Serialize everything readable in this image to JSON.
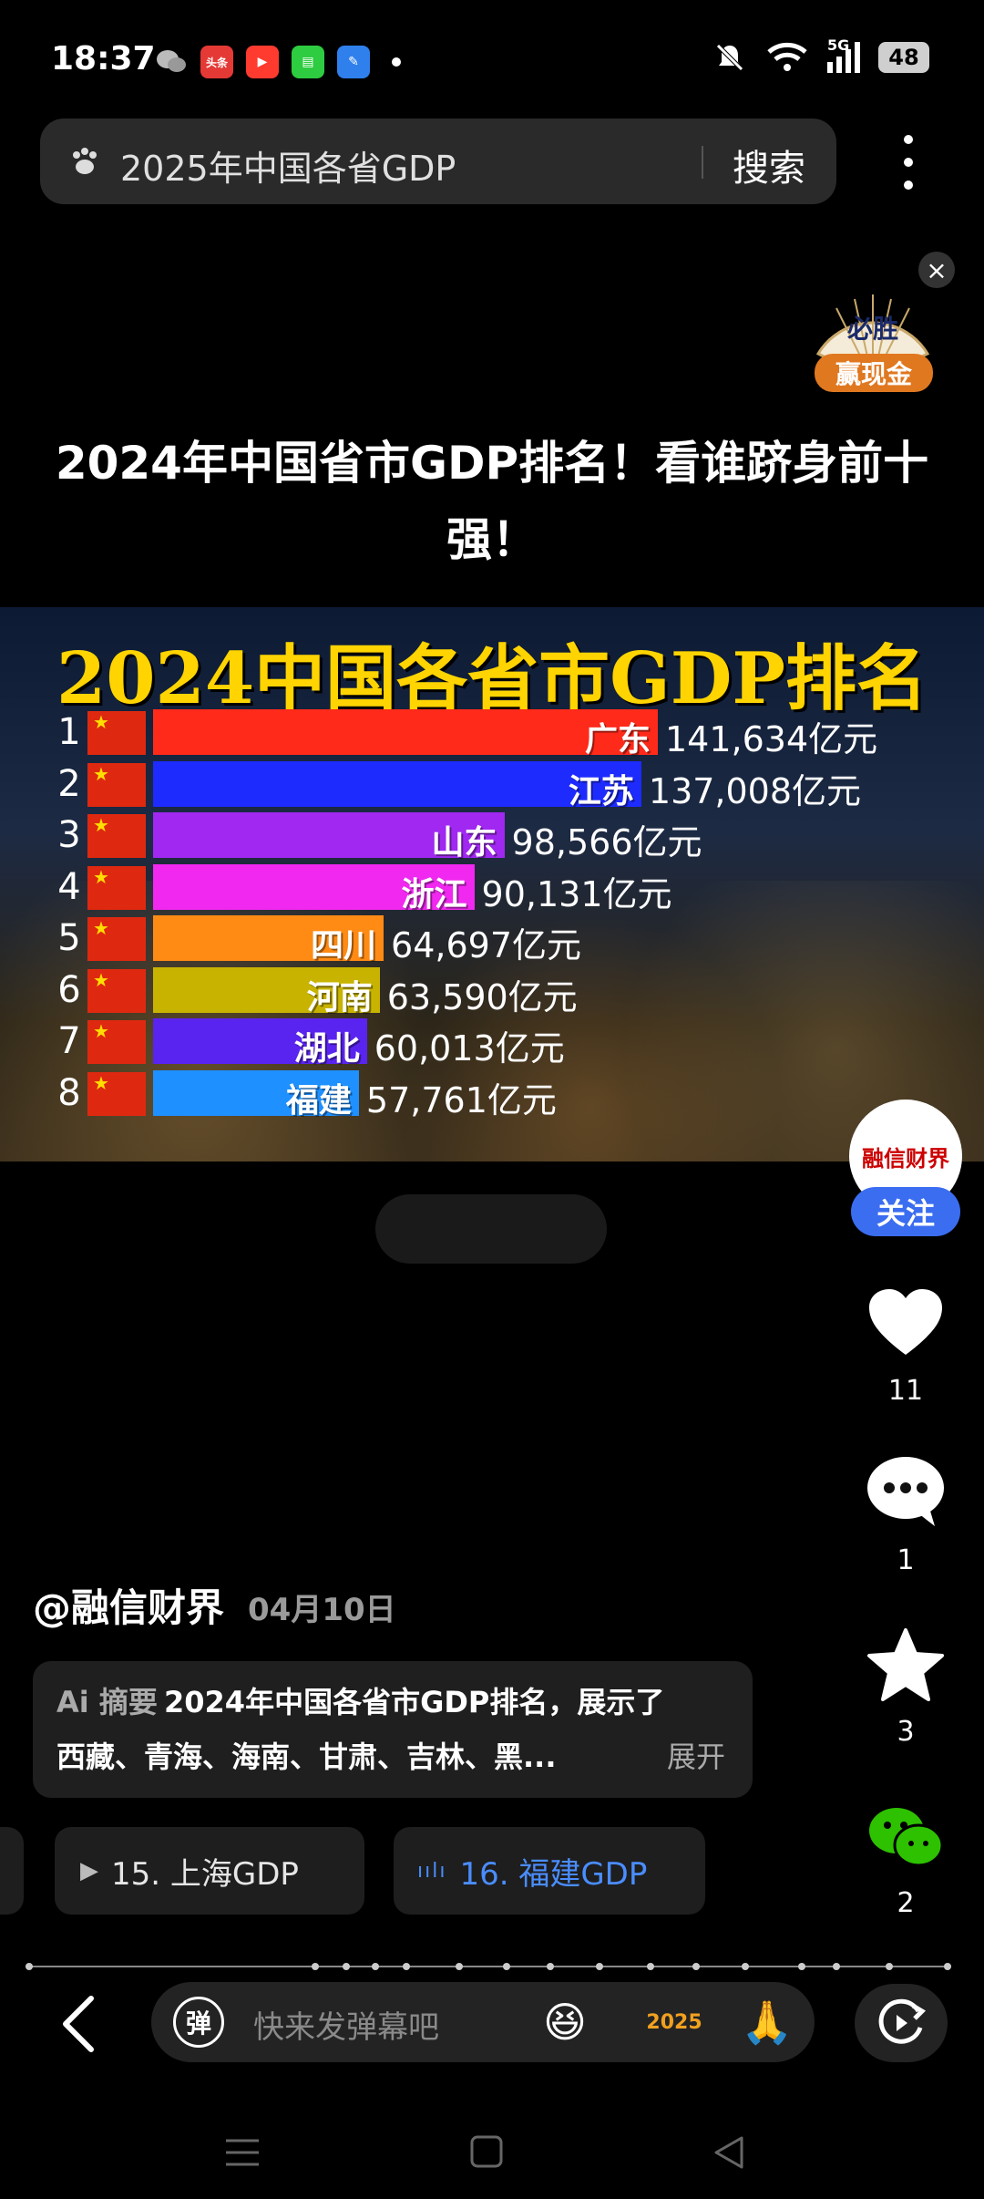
{
  "status_bar": {
    "time": "18:37",
    "battery": "48",
    "network": "5G",
    "apps": [
      {
        "name": "wechat-icon",
        "color": "#9ea3a8",
        "glyph": ""
      },
      {
        "name": "toutiao-icon",
        "color": "#e53935",
        "glyph": "头条"
      },
      {
        "name": "video-app-icon",
        "color": "#ff3b30",
        "glyph": "▶"
      },
      {
        "name": "messages-icon",
        "color": "#2ecc40",
        "glyph": "▤"
      },
      {
        "name": "feather-app-icon",
        "color": "#2f80ed",
        "glyph": "✎"
      }
    ]
  },
  "search": {
    "query": "2025年中国各省GDP",
    "button_label": "搜索"
  },
  "ad": {
    "fan_text": "必胜",
    "label": "赢现金",
    "close_symbol": "×"
  },
  "post": {
    "title": "2024年中国省市GDP排名！看谁跻身前十强！",
    "author": "@融信财界",
    "date": "04月10日",
    "summary_ai_label": "Ai 摘要",
    "summary_line1": "2024年中国各省市GDP排名，展示了",
    "summary_line2": "西藏、青海、海南、甘肃、吉林、黑...",
    "summary_expand": "展开"
  },
  "chart_data": {
    "type": "bar",
    "title": "2024中国各省市GDP排名",
    "unit": "亿元",
    "categories": [
      "广东",
      "江苏",
      "山东",
      "浙江",
      "四川",
      "河南",
      "湖北",
      "福建"
    ],
    "values": [
      141634,
      137008,
      98566,
      90131,
      64697,
      63590,
      60013,
      57761
    ],
    "value_labels": [
      "141,634亿元",
      "137,008亿元",
      "98,566亿元",
      "90,131亿元",
      "64,697亿元",
      "63,590亿元",
      "60,013亿元",
      "57,761亿元"
    ],
    "ranks": [
      "1",
      "2",
      "3",
      "4",
      "5",
      "6",
      "7",
      "8"
    ],
    "colors": [
      "#ff2a1a",
      "#1e2bff",
      "#a028f0",
      "#f028f0",
      "#ff8a14",
      "#c8b400",
      "#5a24f0",
      "#1e90ff"
    ]
  },
  "actions": {
    "avatar_text": "融信财界",
    "follow_label": "关注",
    "likes": "11",
    "comments": "1",
    "favorites": "3",
    "shares": "2"
  },
  "related": {
    "chip1": "15. 上海GDP",
    "chip2": "16. 福建GDP"
  },
  "input_bar": {
    "danmaku_icon_text": "弹",
    "placeholder": "快来发弹幕吧",
    "emoji1": "😆",
    "emoji2": "2025",
    "emoji3": "🙏"
  }
}
